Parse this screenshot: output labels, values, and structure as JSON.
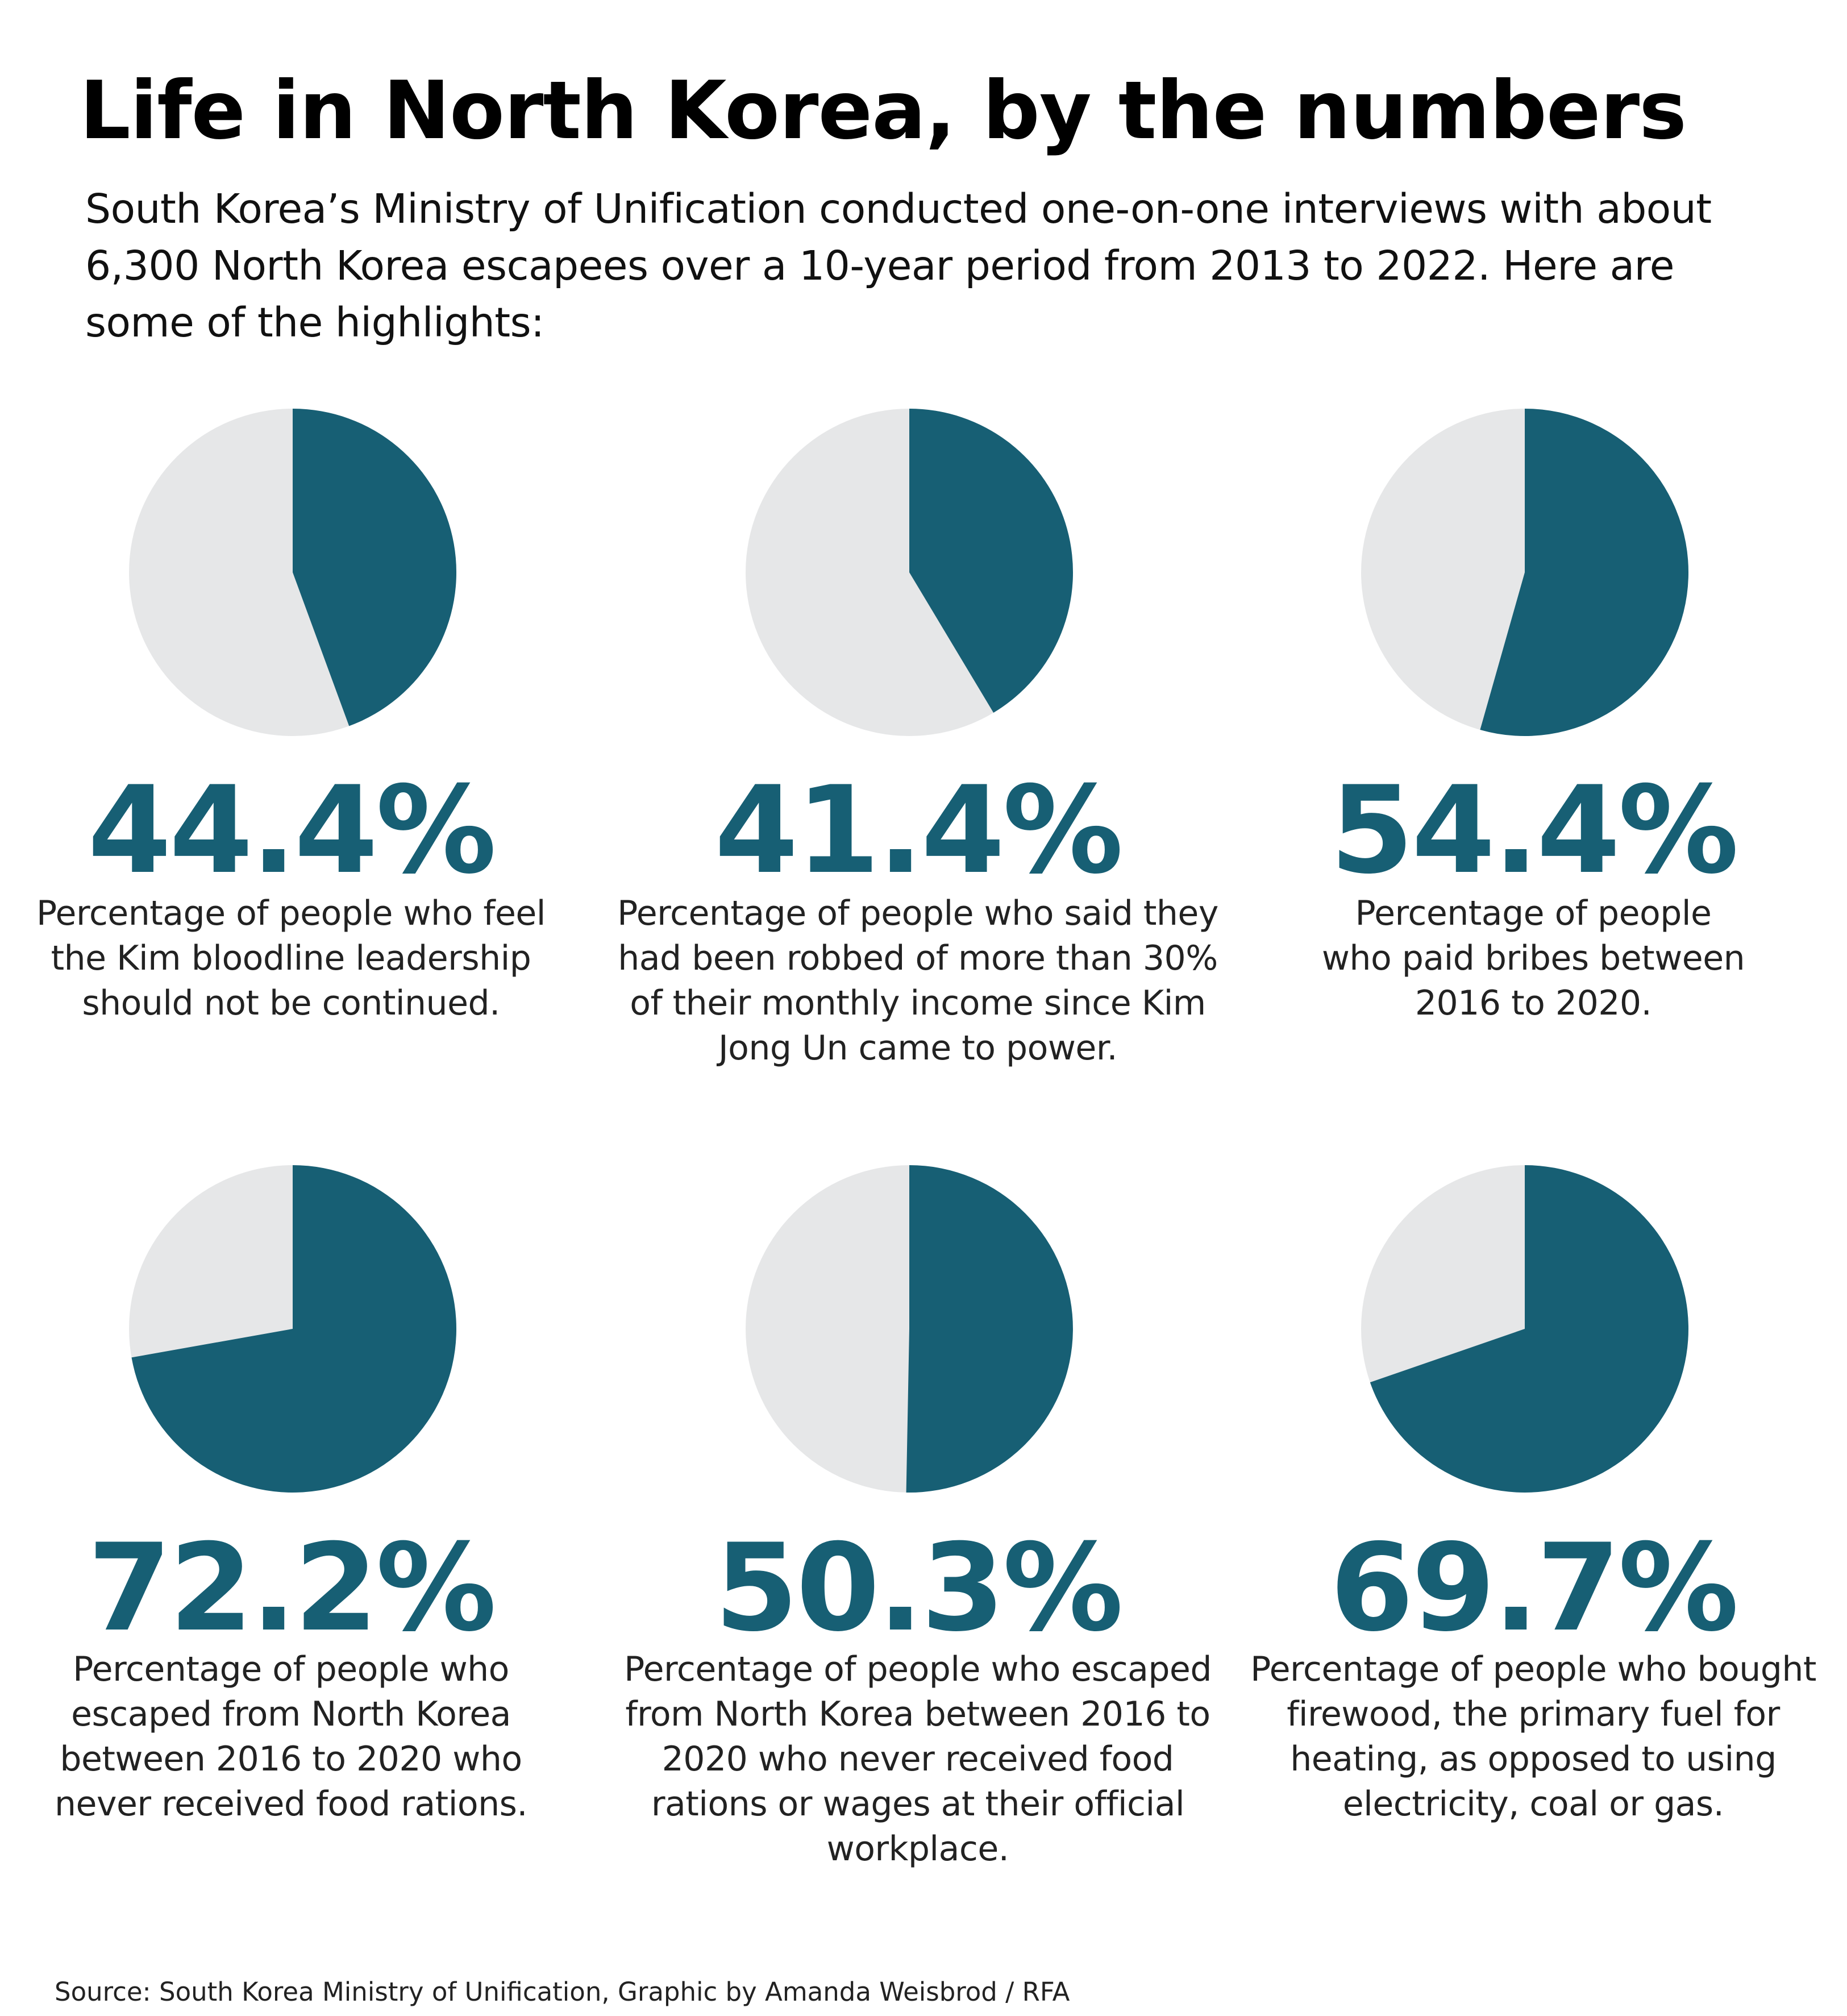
{
  "title": "Life in North Korea, by the numbers",
  "subtitle": "South Korea’s Ministry of Unification conducted one-on-one interviews with about 6,300 North Korea escapees over a 10-year period from 2013 to 2022. Here are some of the highlights:",
  "source": "Source: South Korea Ministry of Unification, Graphic by Amanda Weisbrod / RFA",
  "colors": {
    "primary": "#175f74",
    "remainder": "#e6e7e8"
  },
  "chart_data": [
    {
      "type": "pie",
      "value": 44.4,
      "label": "44.4%",
      "description": "Percentage of people who feel the Kim bloodline leadership should not be continued."
    },
    {
      "type": "pie",
      "value": 41.4,
      "label": "41.4%",
      "description": "Percentage of people who said they had been robbed of more than 30% of their monthly income since Kim Jong Un came to power."
    },
    {
      "type": "pie",
      "value": 54.4,
      "label": "54.4%",
      "description": "Percentage of people who paid bribes between 2016 to 2020."
    },
    {
      "type": "pie",
      "value": 72.2,
      "label": "72.2%",
      "description": "Percentage of people who escaped from North Korea between 2016 to 2020 who never received food rations."
    },
    {
      "type": "pie",
      "value": 50.3,
      "label": "50.3%",
      "description": "Percentage of people who escaped from North Korea between 2016 to 2020 who never received food rations or wages at their official workplace."
    },
    {
      "type": "pie",
      "value": 69.7,
      "label": "69.7%",
      "description": "Percentage of people who bought firewood, the primary fuel for heating, as opposed to using electricity, coal or gas."
    }
  ]
}
